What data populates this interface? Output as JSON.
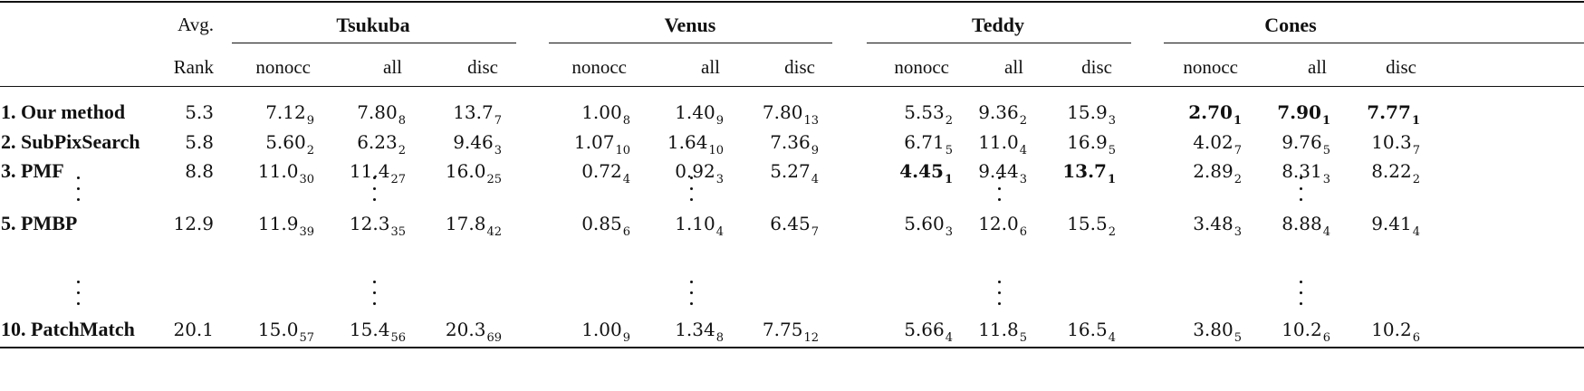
{
  "table": {
    "avg_header_top": "Avg.",
    "avg_header_bottom": "Rank",
    "datasets": [
      {
        "name": "Tsukuba",
        "columns": [
          "nonocc",
          "all",
          "disc"
        ]
      },
      {
        "name": "Venus",
        "columns": [
          "nonocc",
          "all",
          "disc"
        ]
      },
      {
        "name": "Teddy",
        "columns": [
          "nonocc",
          "all",
          "disc"
        ]
      },
      {
        "name": "Cones",
        "columns": [
          "nonocc",
          "all",
          "disc"
        ]
      }
    ],
    "rows": [
      {
        "method": "1. Our method",
        "avg_rank": "5.3",
        "cells": [
          {
            "v": "7.12",
            "r": "9"
          },
          {
            "v": "7.80",
            "r": "8"
          },
          {
            "v": "13.7",
            "r": "7"
          },
          {
            "v": "1.00",
            "r": "8"
          },
          {
            "v": "1.40",
            "r": "9"
          },
          {
            "v": "7.80",
            "r": "13"
          },
          {
            "v": "5.53",
            "r": "2"
          },
          {
            "v": "9.36",
            "r": "2"
          },
          {
            "v": "15.9",
            "r": "3"
          },
          {
            "v": "2.70",
            "r": "1",
            "best": true
          },
          {
            "v": "7.90",
            "r": "1",
            "best": true
          },
          {
            "v": "7.77",
            "r": "1",
            "best": true
          }
        ]
      },
      {
        "method": "2. SubPixSearch",
        "avg_rank": "5.8",
        "cells": [
          {
            "v": "5.60",
            "r": "2"
          },
          {
            "v": "6.23",
            "r": "2"
          },
          {
            "v": "9.46",
            "r": "3"
          },
          {
            "v": "1.07",
            "r": "10"
          },
          {
            "v": "1.64",
            "r": "10"
          },
          {
            "v": "7.36",
            "r": "9"
          },
          {
            "v": "6.71",
            "r": "5"
          },
          {
            "v": "11.0",
            "r": "4"
          },
          {
            "v": "16.9",
            "r": "5"
          },
          {
            "v": "4.02",
            "r": "7"
          },
          {
            "v": "9.76",
            "r": "5"
          },
          {
            "v": "10.3",
            "r": "7"
          }
        ]
      },
      {
        "method": "3. PMF",
        "avg_rank": "8.8",
        "cells": [
          {
            "v": "11.0",
            "r": "30"
          },
          {
            "v": "11.4",
            "r": "27"
          },
          {
            "v": "16.0",
            "r": "25"
          },
          {
            "v": "0.72",
            "r": "4"
          },
          {
            "v": "0.92",
            "r": "3"
          },
          {
            "v": "5.27",
            "r": "4"
          },
          {
            "v": "4.45",
            "r": "1",
            "best": true
          },
          {
            "v": "9.44",
            "r": "3"
          },
          {
            "v": "13.7",
            "r": "1",
            "best": true
          },
          {
            "v": "2.89",
            "r": "2"
          },
          {
            "v": "8.31",
            "r": "3"
          },
          {
            "v": "8.22",
            "r": "2"
          }
        ]
      },
      {
        "method": "5. PMBP",
        "avg_rank": "12.9",
        "cells": [
          {
            "v": "11.9",
            "r": "39"
          },
          {
            "v": "12.3",
            "r": "35"
          },
          {
            "v": "17.8",
            "r": "42"
          },
          {
            "v": "0.85",
            "r": "6"
          },
          {
            "v": "1.10",
            "r": "4"
          },
          {
            "v": "6.45",
            "r": "7"
          },
          {
            "v": "5.60",
            "r": "3"
          },
          {
            "v": "12.0",
            "r": "6"
          },
          {
            "v": "15.5",
            "r": "2"
          },
          {
            "v": "3.48",
            "r": "3"
          },
          {
            "v": "8.88",
            "r": "4"
          },
          {
            "v": "9.41",
            "r": "4"
          }
        ]
      },
      {
        "method": "10. PatchMatch",
        "avg_rank": "20.1",
        "cells": [
          {
            "v": "15.0",
            "r": "57"
          },
          {
            "v": "15.4",
            "r": "56"
          },
          {
            "v": "20.3",
            "r": "69"
          },
          {
            "v": "1.00",
            "r": "9"
          },
          {
            "v": "1.34",
            "r": "8"
          },
          {
            "v": "7.75",
            "r": "12"
          },
          {
            "v": "5.66",
            "r": "4"
          },
          {
            "v": "11.8",
            "r": "5"
          },
          {
            "v": "16.5",
            "r": "4"
          },
          {
            "v": "3.80",
            "r": "5"
          },
          {
            "v": "10.2",
            "r": "6"
          },
          {
            "v": "10.2",
            "r": "6"
          }
        ]
      }
    ]
  }
}
